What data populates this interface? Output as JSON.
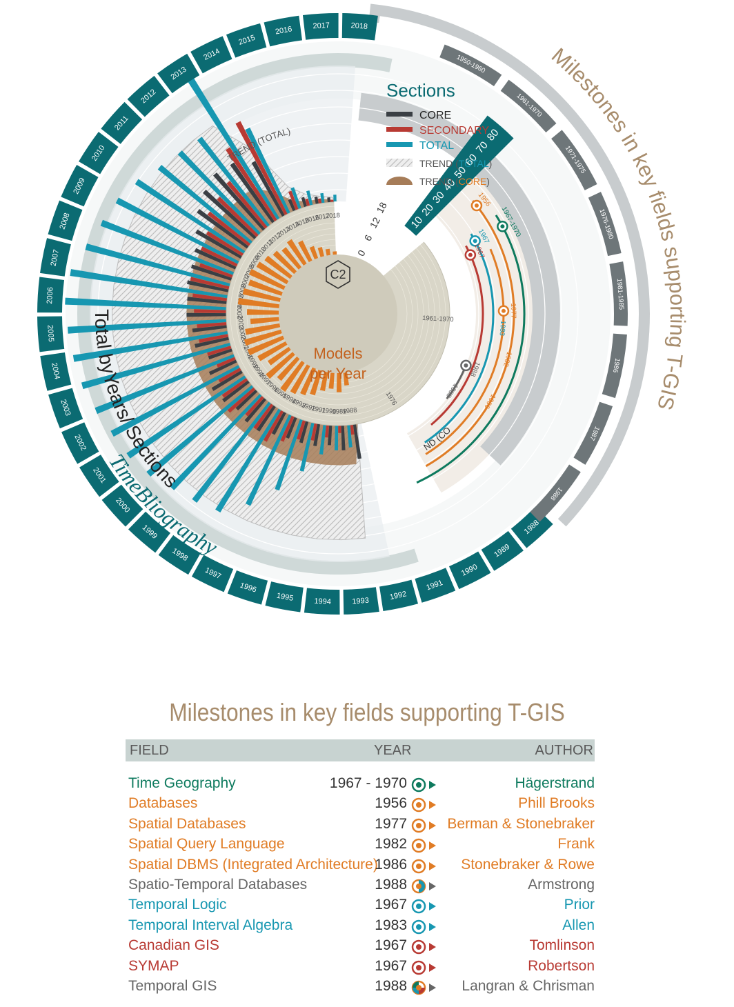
{
  "chart_data": {
    "type": "radial-bar",
    "center_label": {
      "badge": "C2",
      "line1": "Models",
      "line2": "per Year"
    },
    "inner_scale_ticks": [
      "0",
      "6",
      "12",
      "18"
    ],
    "outer_scale_ticks": [
      "10",
      "20",
      "30",
      "40",
      "50",
      "60",
      "70",
      "80"
    ],
    "years": [
      1988,
      1989,
      1990,
      1991,
      1992,
      1993,
      1994,
      1995,
      1996,
      1997,
      1998,
      1999,
      2000,
      2001,
      2002,
      2003,
      2004,
      2005,
      2006,
      2007,
      2008,
      2009,
      2010,
      2011,
      2012,
      2013,
      2014,
      2015,
      2016,
      2017,
      2018
    ],
    "ring_year_labels": [
      "1988",
      "1989",
      "1990",
      "1991",
      "1992",
      "1993",
      "1994",
      "1995",
      "1996",
      "1997",
      "1998",
      "1999",
      "2000",
      "2001",
      "2002",
      "2003",
      "2004",
      "2005",
      "2006",
      "2007",
      "2008",
      "2009",
      "2010",
      "2011",
      "2012",
      "2013",
      "2014",
      "2015",
      "2016",
      "2017",
      "2018"
    ],
    "inner_year_labels": [
      "1988",
      "1989",
      "1990",
      "1991",
      "1992",
      "1993",
      "1994",
      "1995",
      "1996",
      "1997",
      "1998",
      "1999",
      "2000",
      "2001",
      "2002",
      "2003",
      "2004",
      "2005",
      "2006",
      "2007",
      "2008",
      "2009",
      "2010",
      "2011",
      "2012",
      "2013",
      "2014",
      "2015",
      "2016",
      "2017",
      "2018"
    ],
    "period_labels": [
      "1950-1960",
      "1961-1970",
      "1971-1975",
      "1976-1980",
      "1981-1985",
      "1986",
      "1987",
      "1988"
    ],
    "inner_period_labels": [
      "1961-1970",
      "1976"
    ],
    "models_per_year": [
      4,
      6,
      5,
      6,
      8,
      9,
      10,
      11,
      9,
      11,
      8,
      10,
      12,
      12,
      11,
      9,
      10,
      13,
      12,
      11,
      12,
      11,
      10,
      9,
      8,
      9,
      7,
      4,
      3,
      2,
      1
    ],
    "series": [
      {
        "name": "CORE",
        "color": "#3a3f44",
        "values": [
          14,
          10,
          8,
          9,
          9,
          9,
          10,
          12,
          12,
          11,
          13,
          14,
          12,
          10,
          14,
          14,
          16,
          16,
          17,
          17,
          18,
          21,
          25,
          28,
          30,
          29,
          25,
          5,
          4,
          3,
          2
        ]
      },
      {
        "name": "SECONDARY",
        "color": "#b83a33",
        "values": [
          4,
          3,
          5,
          7,
          8,
          11,
          14,
          12,
          10,
          14,
          12,
          10,
          8,
          10,
          12,
          12,
          13,
          14,
          16,
          14,
          16,
          17,
          21,
          22,
          24,
          35,
          42,
          8,
          3,
          2,
          1
        ]
      },
      {
        "name": "TOTAL",
        "color": "#1797b1",
        "values": [
          9,
          10,
          12,
          20,
          30,
          40,
          48,
          50,
          52,
          55,
          57,
          58,
          60,
          62,
          63,
          64,
          65,
          64,
          60,
          57,
          55,
          52,
          48,
          46,
          45,
          75,
          38,
          9,
          6,
          4,
          3
        ]
      }
    ],
    "trend_total": [
      46,
      46,
      46,
      46,
      46,
      46,
      46,
      46,
      46,
      46,
      46,
      46,
      46,
      46,
      46,
      46,
      46,
      46,
      46,
      46,
      46,
      46,
      46,
      46,
      46,
      46,
      30,
      10,
      5,
      3,
      2
    ],
    "trend_core": [
      16,
      16,
      16,
      16,
      16,
      16,
      16,
      16,
      16,
      16,
      16,
      16,
      16,
      16,
      16,
      16,
      16,
      16,
      16,
      16,
      16,
      16,
      16,
      16,
      16,
      16,
      10,
      4,
      2,
      2,
      1
    ],
    "legend": {
      "title": "Sections",
      "core": "CORE",
      "secondary": "SECONDARY",
      "total": "TOTAL",
      "trend_total_prefix": "TREND (",
      "trend_total_word": "TOTAL",
      "trend_close": ")",
      "trend_core_prefix": "TREND (",
      "trend_core_word": "CORE"
    },
    "arc_labels": {
      "trend_total": "TREND (TOTAL)",
      "trend_core": "TREND (CORE)",
      "timebio_1": "TimeBliography",
      "timebio_2": "Total byYears/ Sections",
      "milestones": "Milestones in key fields supporting T-GIS"
    },
    "milestone_arcs": [
      {
        "label": "1967-1970",
        "color": "#0e7a5e",
        "year": 1967
      },
      {
        "label": "1956",
        "color": "#e07c25",
        "year": 1956
      },
      {
        "label": "1977",
        "color": "#e07c25",
        "year": 1977
      },
      {
        "label": "1982",
        "color": "#e07c25",
        "year": 1982
      },
      {
        "label": "1986",
        "color": "#e07c25",
        "year": 1986
      },
      {
        "label": "1967",
        "color": "#1797b1",
        "year": 1967
      },
      {
        "label": "1983",
        "color": "#1797b1",
        "year": 1983
      },
      {
        "label": "1967",
        "color": "#b83a33",
        "year": 1967
      },
      {
        "label": "1988",
        "color": "#666666",
        "year": 1988
      },
      {
        "label": "1988",
        "color": "#666666",
        "year": 1988
      }
    ]
  },
  "colors": {
    "teal_dark": "#0b6b72",
    "core": "#3a3f44",
    "secondary": "#b83a33",
    "total": "#1797b1",
    "orange": "#e07c25",
    "trend_core": "#a67c58",
    "green": "#0e7a5e",
    "tan": "#a78c6c"
  },
  "milestones": {
    "title": "Milestones in key fields supporting T-GIS",
    "headers": {
      "field": "FIELD",
      "year": "YEAR",
      "author": "AUTHOR"
    },
    "rows": [
      {
        "field": "Time Geography",
        "year": "1967 - 1970",
        "author": "Hägerstrand",
        "color": "#0e7a5e",
        "marker": "#0e7a5e"
      },
      {
        "field": "Databases",
        "year": "1956",
        "author": "Phill Brooks",
        "color": "#e07c25",
        "marker": "#e07c25"
      },
      {
        "field": "Spatial Databases",
        "year": "1977",
        "author": "Berman & Stonebraker",
        "color": "#e07c25",
        "marker": "#e07c25"
      },
      {
        "field": "Spatial Query Language",
        "year": "1982",
        "author": "Frank",
        "color": "#e07c25",
        "marker": "#e07c25"
      },
      {
        "field": "Spatial DBMS (Integrated Architecture)",
        "year": "1986",
        "author": "Stonebraker & Rowe",
        "color": "#e07c25",
        "marker": "#e07c25"
      },
      {
        "field": "Spatio-Temporal Databases",
        "year": "1988",
        "author": "Armstrong",
        "color": "#666666",
        "marker": "mixed2"
      },
      {
        "field": "Temporal Logic",
        "year": "1967",
        "author": "Prior",
        "color": "#1797b1",
        "marker": "#1797b1"
      },
      {
        "field": "Temporal Interval Algebra",
        "year": "1983",
        "author": "Allen",
        "color": "#1797b1",
        "marker": "#1797b1"
      },
      {
        "field": "Canadian GIS",
        "year": "1967",
        "author": "Tomlinson",
        "color": "#b83a33",
        "marker": "#b83a33"
      },
      {
        "field": "SYMAP",
        "year": "1967",
        "author": "Robertson",
        "color": "#b83a33",
        "marker": "#b83a33"
      },
      {
        "field": "Temporal GIS",
        "year": "1988",
        "author": "Langran & Chrisman",
        "color": "#666666",
        "marker": "mixed4"
      }
    ]
  }
}
